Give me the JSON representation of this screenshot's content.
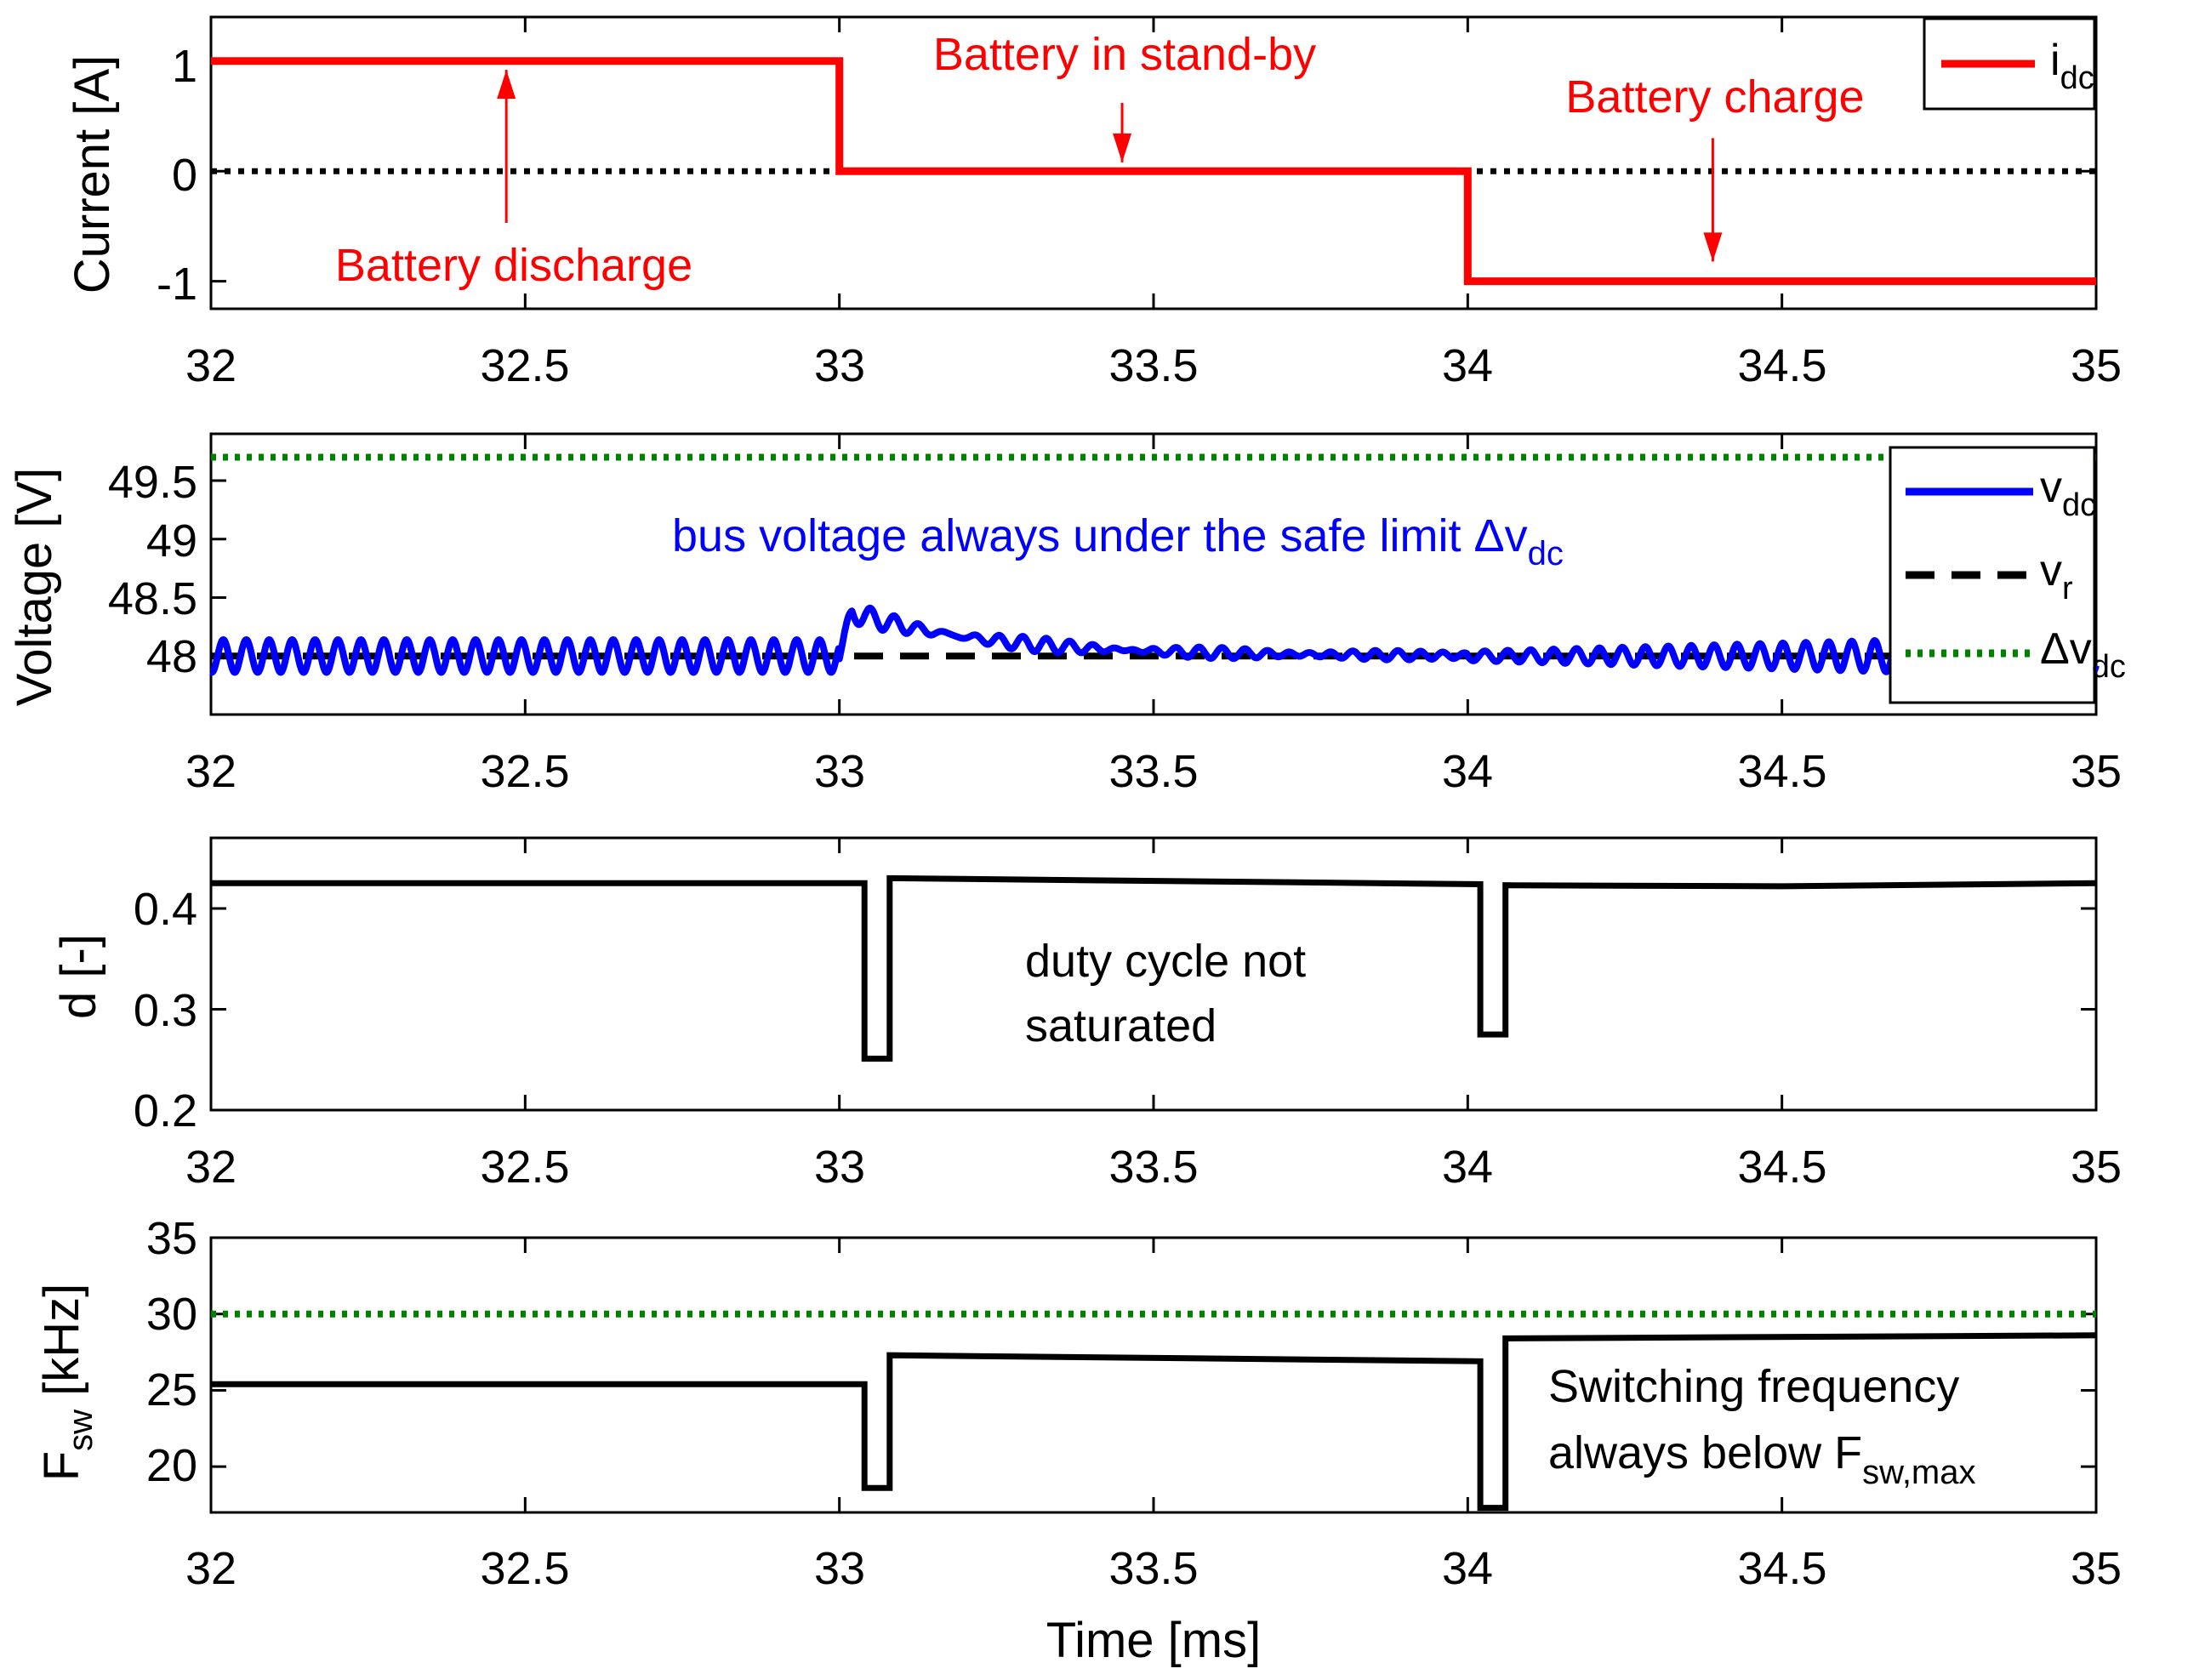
{
  "figure": {
    "xlabel": "Time [ms]"
  },
  "colors": {
    "red": "#ff0000",
    "blue": "#0000ff",
    "black": "#000000",
    "green": "#008000"
  },
  "chart_data": [
    {
      "type": "line",
      "id": "current",
      "ylabel": "Current [A]",
      "xlim": [
        32,
        35
      ],
      "ylim": [
        -1.25,
        1.4
      ],
      "xticks": [
        "32",
        "32.5",
        "33",
        "33.5",
        "34",
        "34.5",
        "35"
      ],
      "yticks": [
        "-1",
        "0",
        "1"
      ],
      "series": [
        {
          "name": "idc",
          "legend_main": "i",
          "legend_sub": "dc",
          "color": "#ff0000",
          "style": "solid",
          "x": [
            32,
            33,
            33,
            34,
            34,
            35
          ],
          "y": [
            1,
            1,
            0,
            0,
            -1,
            -1
          ]
        },
        {
          "name": "zero",
          "color": "#000000",
          "style": "dotted",
          "x": [
            32,
            35
          ],
          "y": [
            0,
            0
          ]
        }
      ],
      "annotations": [
        {
          "text": "Battery discharge",
          "x": 32.47,
          "y": -0.8,
          "arrow_from": [
            32.47,
            -0.47
          ],
          "arrow_to": [
            32.47,
            0.92
          ]
        },
        {
          "text": "Battery in stand-by",
          "x": 33.45,
          "y": 1.0,
          "arrow_from": [
            33.45,
            0.62
          ],
          "arrow_to": [
            33.45,
            0.08
          ]
        },
        {
          "text": "Battery charge",
          "x": 34.39,
          "y": 0.6,
          "arrow_from": [
            34.39,
            0.3
          ],
          "arrow_to": [
            34.39,
            -0.82
          ]
        }
      ]
    },
    {
      "type": "line",
      "id": "voltage",
      "ylabel": "Voltage [V]",
      "xlim": [
        32,
        35
      ],
      "ylim": [
        47.5,
        49.9
      ],
      "xticks": [
        "32",
        "32.5",
        "33",
        "33.5",
        "34",
        "34.5",
        "35"
      ],
      "yticks": [
        "48",
        "48.5",
        "49",
        "49.5"
      ],
      "series": [
        {
          "name": "vdc",
          "legend_main": "v",
          "legend_sub": "dc",
          "color": "#0000ff",
          "style": "solid",
          "description": "oscillating around 48 V (amplitude ~0.14 V) from 32 to 33 ms; jumps to ~48.5 V at 33 ms and decays back to 48; oscillates again after 34 ms"
        },
        {
          "name": "vr",
          "legend_main": "v",
          "legend_sub": "r",
          "color": "#000000",
          "style": "dashed",
          "x": [
            32,
            35
          ],
          "y": [
            48,
            48
          ]
        },
        {
          "name": "dvdc",
          "legend_main": "Δv",
          "legend_sub": "dc",
          "color": "#008000",
          "style": "dotted",
          "x": [
            32,
            35
          ],
          "y": [
            49.7,
            49.7
          ]
        }
      ],
      "annotations": [
        {
          "text_main": "bus voltage always under the safe limit  Δv",
          "text_sub": "dc",
          "x": 32.73,
          "y": 49.0
        }
      ]
    },
    {
      "type": "line",
      "id": "duty",
      "ylabel": "d [-]",
      "xlim": [
        32,
        35
      ],
      "ylim": [
        0.2,
        0.47
      ],
      "xticks": [
        "32",
        "32.5",
        "33",
        "33.5",
        "34",
        "34.5",
        "35"
      ],
      "yticks": [
        "0.2",
        "0.3",
        "0.4"
      ],
      "series": [
        {
          "name": "d",
          "color": "#000000",
          "style": "solid",
          "x": [
            32,
            33.04,
            33.04,
            33.08,
            33.08,
            34.02,
            34.02,
            34.06,
            34.06,
            34.5,
            35
          ],
          "y": [
            0.425,
            0.425,
            0.251,
            0.251,
            0.43,
            0.424,
            0.275,
            0.275,
            0.423,
            0.422,
            0.425
          ]
        }
      ],
      "annotations": [
        {
          "lines": [
            "duty cycle not",
            "saturated"
          ],
          "x": 33.29,
          "y": 0.345
        }
      ]
    },
    {
      "type": "line",
      "id": "fsw",
      "ylabel_main": "F",
      "ylabel_sub": "sw",
      "ylabel_rest": " [kHz]",
      "xlim": [
        32,
        35
      ],
      "ylim": [
        17,
        35
      ],
      "xticks": [
        "32",
        "32.5",
        "33",
        "33.5",
        "34",
        "34.5",
        "35"
      ],
      "yticks": [
        "20",
        "25",
        "30",
        "35"
      ],
      "series": [
        {
          "name": "Fsw",
          "color": "#000000",
          "style": "solid",
          "x": [
            32,
            33.04,
            33.04,
            33.08,
            33.08,
            34.02,
            34.02,
            34.06,
            34.06,
            35
          ],
          "y": [
            25.4,
            25.4,
            18.6,
            18.6,
            27.3,
            26.9,
            17.3,
            17.3,
            28.4,
            28.6
          ]
        },
        {
          "name": "Fsw,max",
          "color": "#008000",
          "style": "dotted",
          "x": [
            32,
            35
          ],
          "y": [
            30,
            30
          ]
        }
      ],
      "annotations": [
        {
          "lines": [
            "Switching frequency",
            "always below F"
          ],
          "sub": "sw,max",
          "x": 34.13,
          "y": 25.1
        }
      ]
    }
  ]
}
